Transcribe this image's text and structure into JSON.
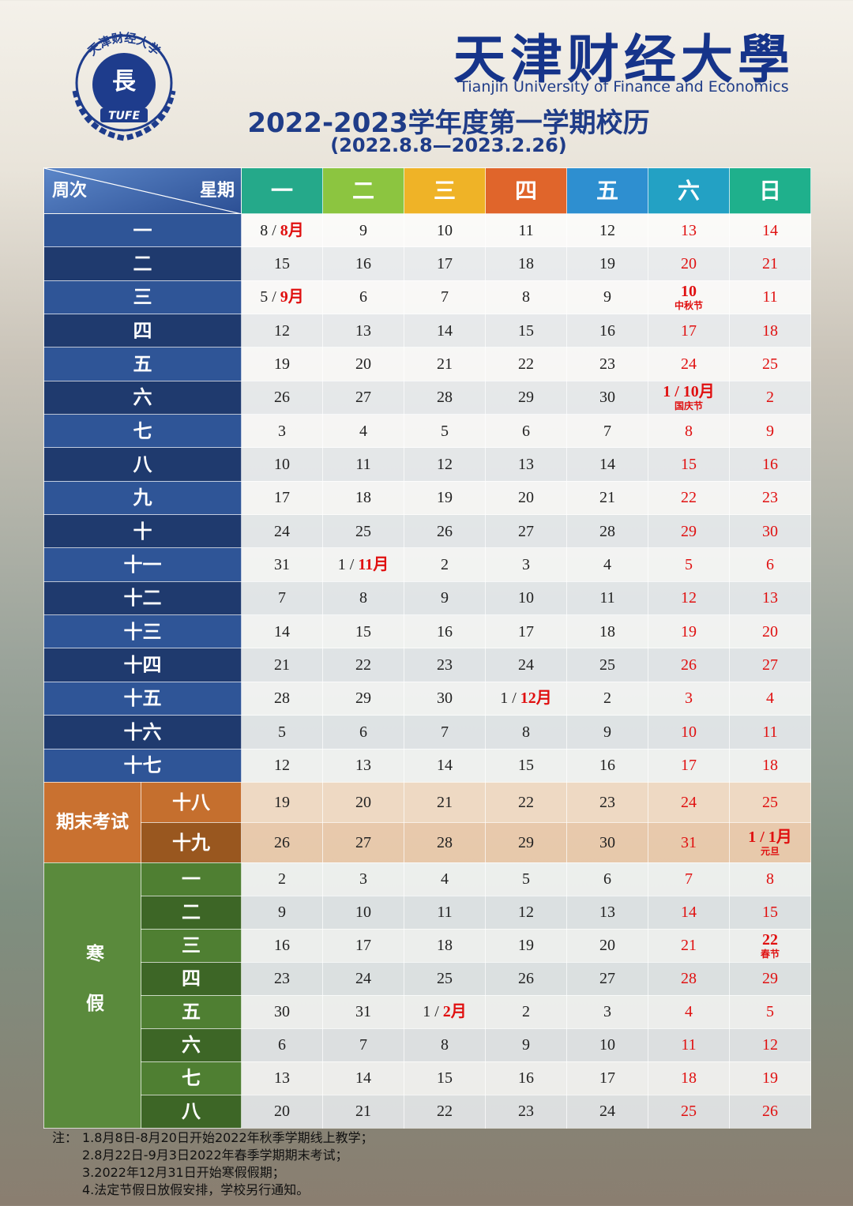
{
  "header": {
    "logo_ring": "天津财经大学",
    "logo_text": "TUFE",
    "university_cn": "天津财经大學",
    "university_en": "Tianjin University of Finance and Economics",
    "title": "2022-2023学年度第一学期校历",
    "date_range": "(2022.8.8—2023.2.26)"
  },
  "table": {
    "corner_left": "周次",
    "corner_right": "星期",
    "days": [
      "一",
      "二",
      "三",
      "四",
      "五",
      "六",
      "日"
    ],
    "groups": [
      {
        "label": null,
        "rows": [
          {
            "week": "一",
            "cells": [
              {
                "day": "8 /",
                "month": "8月"
              },
              9,
              10,
              11,
              12,
              13,
              14
            ]
          },
          {
            "week": "二",
            "cells": [
              15,
              16,
              17,
              18,
              19,
              20,
              21
            ]
          },
          {
            "week": "三",
            "cells": [
              {
                "day": "5 /",
                "month": "9月"
              },
              6,
              7,
              8,
              9,
              {
                "day": "10",
                "note": "中秋节"
              },
              11
            ]
          },
          {
            "week": "四",
            "cells": [
              12,
              13,
              14,
              15,
              16,
              17,
              18
            ]
          },
          {
            "week": "五",
            "cells": [
              19,
              20,
              21,
              22,
              23,
              24,
              25
            ]
          },
          {
            "week": "六",
            "cells": [
              26,
              27,
              28,
              29,
              30,
              {
                "day": "1 /",
                "month": "10月",
                "note": "国庆节"
              },
              2
            ]
          },
          {
            "week": "七",
            "cells": [
              3,
              4,
              5,
              6,
              7,
              8,
              9
            ]
          },
          {
            "week": "八",
            "cells": [
              10,
              11,
              12,
              13,
              14,
              15,
              16
            ]
          },
          {
            "week": "九",
            "cells": [
              17,
              18,
              19,
              20,
              21,
              22,
              23
            ]
          },
          {
            "week": "十",
            "cells": [
              24,
              25,
              26,
              27,
              28,
              29,
              30
            ]
          },
          {
            "week": "十一",
            "cells": [
              31,
              {
                "day": "1 /",
                "month": "11月"
              },
              2,
              3,
              4,
              5,
              6
            ]
          },
          {
            "week": "十二",
            "cells": [
              7,
              8,
              9,
              10,
              11,
              12,
              13
            ]
          },
          {
            "week": "十三",
            "cells": [
              14,
              15,
              16,
              17,
              18,
              19,
              20
            ]
          },
          {
            "week": "十四",
            "cells": [
              21,
              22,
              23,
              24,
              25,
              26,
              27
            ]
          },
          {
            "week": "十五",
            "cells": [
              28,
              29,
              30,
              {
                "day": "1 /",
                "month": "12月"
              },
              2,
              3,
              4
            ]
          },
          {
            "week": "十六",
            "cells": [
              5,
              6,
              7,
              8,
              9,
              10,
              11
            ]
          },
          {
            "week": "十七",
            "cells": [
              12,
              13,
              14,
              15,
              16,
              17,
              18
            ]
          }
        ]
      },
      {
        "label": "期末考试",
        "rows": [
          {
            "week": "十八",
            "cells": [
              19,
              20,
              21,
              22,
              23,
              24,
              25
            ]
          },
          {
            "week": "十九",
            "cells": [
              26,
              27,
              28,
              29,
              30,
              31,
              {
                "day": "1 /",
                "month": "1月",
                "note": "元旦"
              }
            ]
          }
        ]
      },
      {
        "label": "寒假",
        "rows": [
          {
            "week": "一",
            "cells": [
              2,
              3,
              4,
              5,
              6,
              7,
              8
            ]
          },
          {
            "week": "二",
            "cells": [
              9,
              10,
              11,
              12,
              13,
              14,
              15
            ]
          },
          {
            "week": "三",
            "cells": [
              16,
              17,
              18,
              19,
              20,
              21,
              {
                "day": "22",
                "note": "春节"
              }
            ]
          },
          {
            "week": "四",
            "cells": [
              23,
              24,
              25,
              26,
              27,
              28,
              29
            ]
          },
          {
            "week": "五",
            "cells": [
              30,
              31,
              {
                "day": "1 /",
                "month": "2月"
              },
              2,
              3,
              4,
              5
            ]
          },
          {
            "week": "六",
            "cells": [
              6,
              7,
              8,
              9,
              10,
              11,
              12
            ]
          },
          {
            "week": "七",
            "cells": [
              13,
              14,
              15,
              16,
              17,
              18,
              19
            ]
          },
          {
            "week": "八",
            "cells": [
              20,
              21,
              22,
              23,
              24,
              25,
              26
            ]
          }
        ]
      }
    ]
  },
  "notes": {
    "prefix": "注：",
    "items": [
      "1.8月8日-8月20日开始2022年秋季学期线上教学；",
      "2.8月22日-9月3日2022年春季学期期末考试；",
      "3.2022年12月31日开始寒假假期；",
      "4.法定节假日放假安排，学校另行通知。"
    ]
  }
}
